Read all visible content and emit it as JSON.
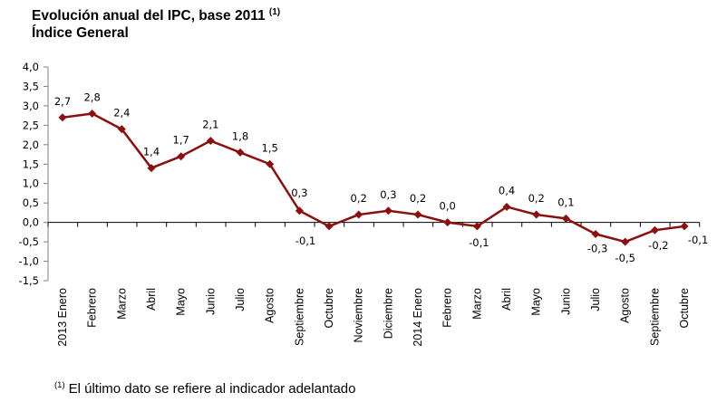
{
  "title": {
    "line1": "Evolución anual del IPC, base 2011",
    "superscript": "(1)",
    "line2": "Índice General"
  },
  "footnote": {
    "marker": "(1)",
    "text": "El último dato se refiere al indicador adelantado"
  },
  "colors": {
    "series": "#8B0F0F",
    "axis": "#808080",
    "zero_line": "#000000"
  },
  "chart_data": {
    "type": "line",
    "title": "Evolución anual del IPC, base 2011 (1) Índice General",
    "xlabel": "",
    "ylabel": "",
    "ylim": [
      -1.5,
      4.0
    ],
    "grid": false,
    "legend": "none",
    "y_ticks": [
      "4,0",
      "3,5",
      "3,0",
      "2,5",
      "2,0",
      "1,5",
      "1,0",
      "0,5",
      "0,0",
      "-0,5",
      "-1,0",
      "-1,5"
    ],
    "y_tick_values": [
      4.0,
      3.5,
      3.0,
      2.5,
      2.0,
      1.5,
      1.0,
      0.5,
      0.0,
      -0.5,
      -1.0,
      -1.5
    ],
    "categories": [
      "2013 Enero",
      "Febrero",
      "Marzo",
      "Abril",
      "Mayo",
      "Junio",
      "Julio",
      "Agosto",
      "Septiembre",
      "Octubre",
      "Noviembre",
      "Diciembre",
      "2014 Enero",
      "Febrero",
      "Marzo",
      "Abril",
      "Mayo",
      "Junio",
      "Julio",
      "Agosto",
      "Septiembre",
      "Octubre"
    ],
    "series": [
      {
        "name": "Índice General",
        "values": [
          2.7,
          2.8,
          2.4,
          1.4,
          1.7,
          2.1,
          1.8,
          1.5,
          0.3,
          -0.1,
          0.2,
          0.3,
          0.2,
          0.0,
          -0.1,
          0.4,
          0.2,
          0.1,
          -0.3,
          -0.5,
          -0.2,
          -0.1
        ],
        "labels": [
          "2,7",
          "2,8",
          "2,4",
          "1,4",
          "1,7",
          "2,1",
          "1,8",
          "1,5",
          "0,3",
          "-0,1",
          "0,2",
          "0,3",
          "0,2",
          "0,0",
          "-0,1",
          "0,4",
          "0,2",
          "0,1",
          "-0,3",
          "-0,5",
          "-0,2",
          "-0,1"
        ]
      }
    ]
  }
}
